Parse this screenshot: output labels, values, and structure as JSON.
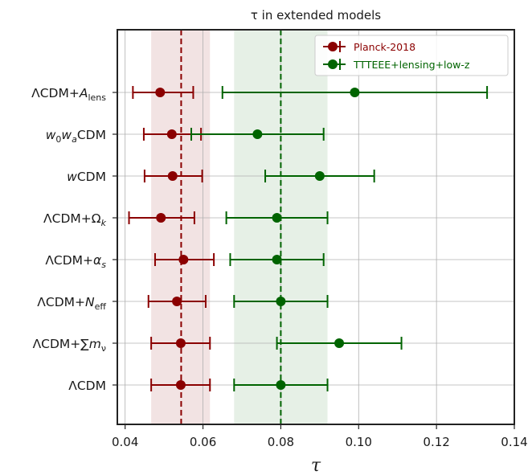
{
  "chart_data": {
    "type": "scatter",
    "title": "τ in extended models",
    "xlabel": "τ",
    "xlim": [
      0.038,
      0.14
    ],
    "xticks": [
      0.04,
      0.06,
      0.08,
      0.1,
      0.12,
      0.14
    ],
    "xtick_labels": [
      "0.04",
      "0.06",
      "0.08",
      "0.10",
      "0.12",
      "0.14"
    ],
    "grid": true,
    "legend_position": "top-right",
    "categories": [
      {
        "base": "ΛCDM+",
        "sym": "A",
        "sub": "lens"
      },
      {
        "base": "",
        "sym": "w",
        "sub": "0",
        "sym2": "w",
        "sub2": "a",
        "tail": "CDM"
      },
      {
        "base": "",
        "sym": "w",
        "sub": "",
        "tail": "CDM"
      },
      {
        "base": "ΛCDM+Ω",
        "sym": "",
        "sub": "k"
      },
      {
        "base": "ΛCDM+",
        "sym": "α",
        "sub": "s"
      },
      {
        "base": "ΛCDM+",
        "sym": "N",
        "sub": "eff"
      },
      {
        "base": "ΛCDM+∑",
        "sym": "m",
        "sub": "ν"
      },
      {
        "base": "ΛCDM",
        "sym": "",
        "sub": ""
      }
    ],
    "reference_lines": [
      {
        "series": 0,
        "center": 0.0544,
        "band": [
          0.0467,
          0.0618
        ]
      },
      {
        "series": 1,
        "center": 0.08,
        "band": [
          0.068,
          0.092
        ]
      }
    ],
    "series": [
      {
        "name": "Planck-2018",
        "color": "#8b0000",
        "band_color": "#f2e3e3",
        "points": [
          {
            "value": 0.049,
            "low": 0.042,
            "high": 0.0575
          },
          {
            "value": 0.052,
            "low": 0.0448,
            "high": 0.0595
          },
          {
            "value": 0.0522,
            "low": 0.045,
            "high": 0.0598
          },
          {
            "value": 0.0492,
            "low": 0.041,
            "high": 0.0578
          },
          {
            "value": 0.055,
            "low": 0.0477,
            "high": 0.0628
          },
          {
            "value": 0.0533,
            "low": 0.046,
            "high": 0.0607
          },
          {
            "value": 0.0543,
            "low": 0.0467,
            "high": 0.0618
          },
          {
            "value": 0.0543,
            "low": 0.0467,
            "high": 0.0618
          }
        ]
      },
      {
        "name": "TTTEEE+lensing+low-z",
        "color": "#006400",
        "band_color": "#e6f0e6",
        "points": [
          {
            "value": 0.099,
            "low": 0.065,
            "high": 0.133
          },
          {
            "value": 0.074,
            "low": 0.057,
            "high": 0.091
          },
          {
            "value": 0.09,
            "low": 0.076,
            "high": 0.104
          },
          {
            "value": 0.079,
            "low": 0.066,
            "high": 0.092
          },
          {
            "value": 0.079,
            "low": 0.067,
            "high": 0.091
          },
          {
            "value": 0.08,
            "low": 0.068,
            "high": 0.092
          },
          {
            "value": 0.095,
            "low": 0.079,
            "high": 0.111
          },
          {
            "value": 0.08,
            "low": 0.068,
            "high": 0.092
          }
        ]
      }
    ]
  }
}
